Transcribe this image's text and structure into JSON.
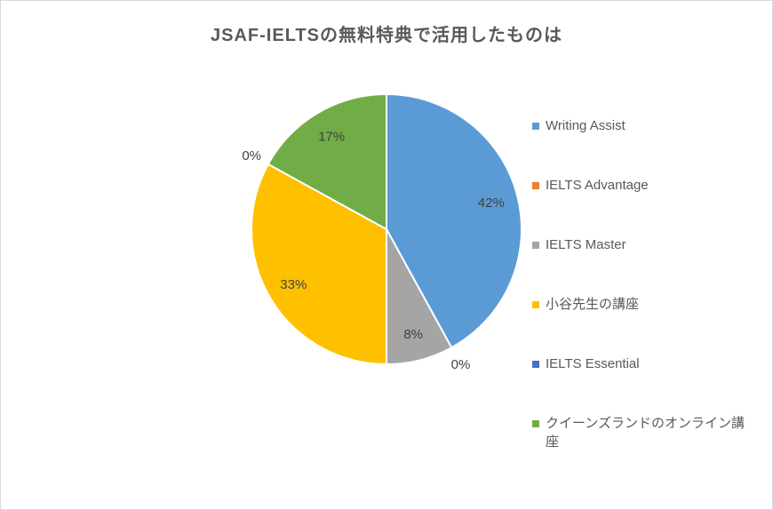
{
  "chart_data": {
    "type": "pie",
    "title": "JSAF-IELTSの無料特典で活用したものは",
    "categories": [
      "Writing Assist",
      "IELTS Advantage",
      "IELTS Master",
      "小谷先生の講座",
      "IELTS Essential",
      "クイーンズランドのオンライン講座"
    ],
    "values": [
      42,
      0,
      8,
      33,
      0,
      17
    ],
    "data_labels": [
      "42%",
      "0%",
      "8%",
      "33%",
      "0%",
      "17%"
    ],
    "colors": [
      "#5B9BD5",
      "#ED7D31",
      "#A5A5A5",
      "#FFC000",
      "#4472C4",
      "#70AD47"
    ],
    "legend_position": "right",
    "start_angle_deg": 0,
    "direction": "clockwise",
    "grid": false
  },
  "style": {
    "title_color": "#595959",
    "label_color": "#404040",
    "legend_text_color": "#595959",
    "slice_border_color": "#FFFFFF",
    "chart_border_color": "#D9D9D9",
    "background_color": "#FFFFFF"
  }
}
